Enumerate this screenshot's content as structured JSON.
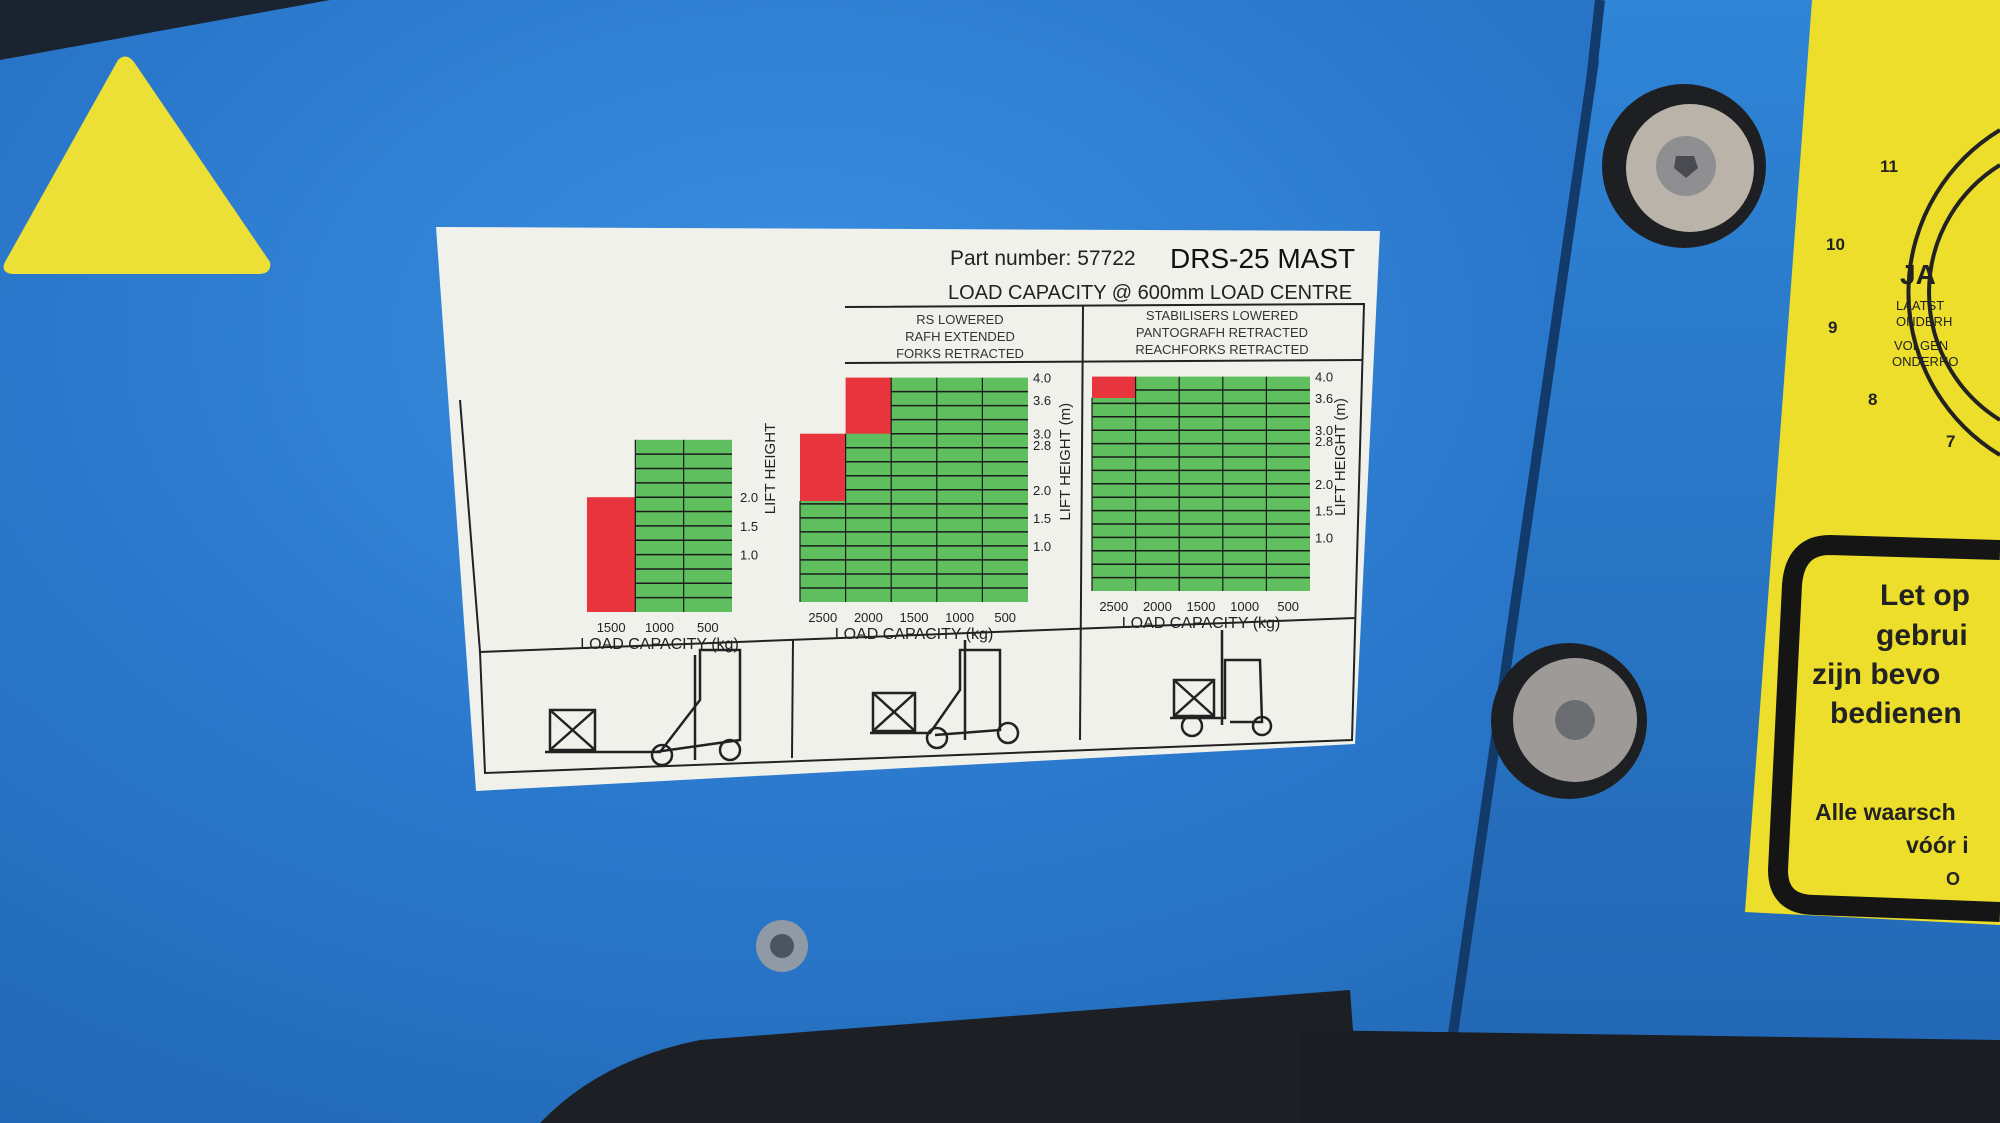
{
  "label": {
    "part_number": "Part number: 57722",
    "model": "DRS-25 MAST",
    "subtitle": "LOAD CAPACITY @ 600mm LOAD CENTRE",
    "charts": [
      {
        "header": [],
        "columns": [
          "1500",
          "1000",
          "500"
        ],
        "allowed_height_m": [
          0,
          3.0,
          3.0
        ],
        "restricted_height_m": [
          2.0,
          0,
          0
        ],
        "yticks": [
          "2.0",
          "1.5",
          "1.0"
        ],
        "ylabel": "LIFT HEIGHT",
        "xlabel": "LOAD CAPACITY (kg)"
      },
      {
        "header": [
          "RS LOWERED",
          "RAFH EXTENDED",
          "FORKS RETRACTED"
        ],
        "columns": [
          "2500",
          "2000",
          "1500",
          "1000",
          "500"
        ],
        "allowed_height_m": [
          1.8,
          3.0,
          4.0,
          4.0,
          4.0
        ],
        "restricted_height_m": [
          3.0,
          4.0,
          0,
          0,
          0
        ],
        "yticks": [
          "4.0",
          "3.6",
          "3.0",
          "2.8",
          "2.0",
          "1.5",
          "1.0"
        ],
        "ylabel": "LIFT HEIGHT (m)",
        "xlabel": "LOAD CAPACITY (kg)"
      },
      {
        "header": [
          "STABILISERS LOWERED",
          "PANTOGRAFH RETRACTED",
          "REACHFORKS RETRACTED"
        ],
        "columns": [
          "2500",
          "2000",
          "1500",
          "1000",
          "500"
        ],
        "allowed_height_m": [
          3.6,
          4.0,
          4.0,
          4.0,
          4.0
        ],
        "restricted_height_m": [
          4.0,
          0,
          0,
          0,
          0
        ],
        "yticks": [
          "4.0",
          "3.6",
          "3.0",
          "2.8",
          "2.0",
          "1.5",
          "1.0"
        ],
        "ylabel": "LIFT HEIGHT (m)",
        "xlabel": "LOAD CAPACITY (kg)"
      }
    ],
    "colors": {
      "allowed": "#5fbf5f",
      "restricted": "#e8343c",
      "label_bg": "#f2f2ee"
    }
  },
  "yellow_sticker": {
    "dial_numbers": [
      "11",
      "10",
      "9",
      "8",
      "7"
    ],
    "dial_text": [
      "JA",
      "LAATST",
      "ONDERH",
      "VOLGEN",
      "ONDERHO"
    ],
    "warning_lines": [
      "Let op",
      "gebrui",
      "zijn bevo",
      "bedienen",
      "Alle waarsch",
      "vóór i",
      "O"
    ]
  },
  "panel_color": "#2a78cc",
  "warning_triangle_color": "#f0e030"
}
